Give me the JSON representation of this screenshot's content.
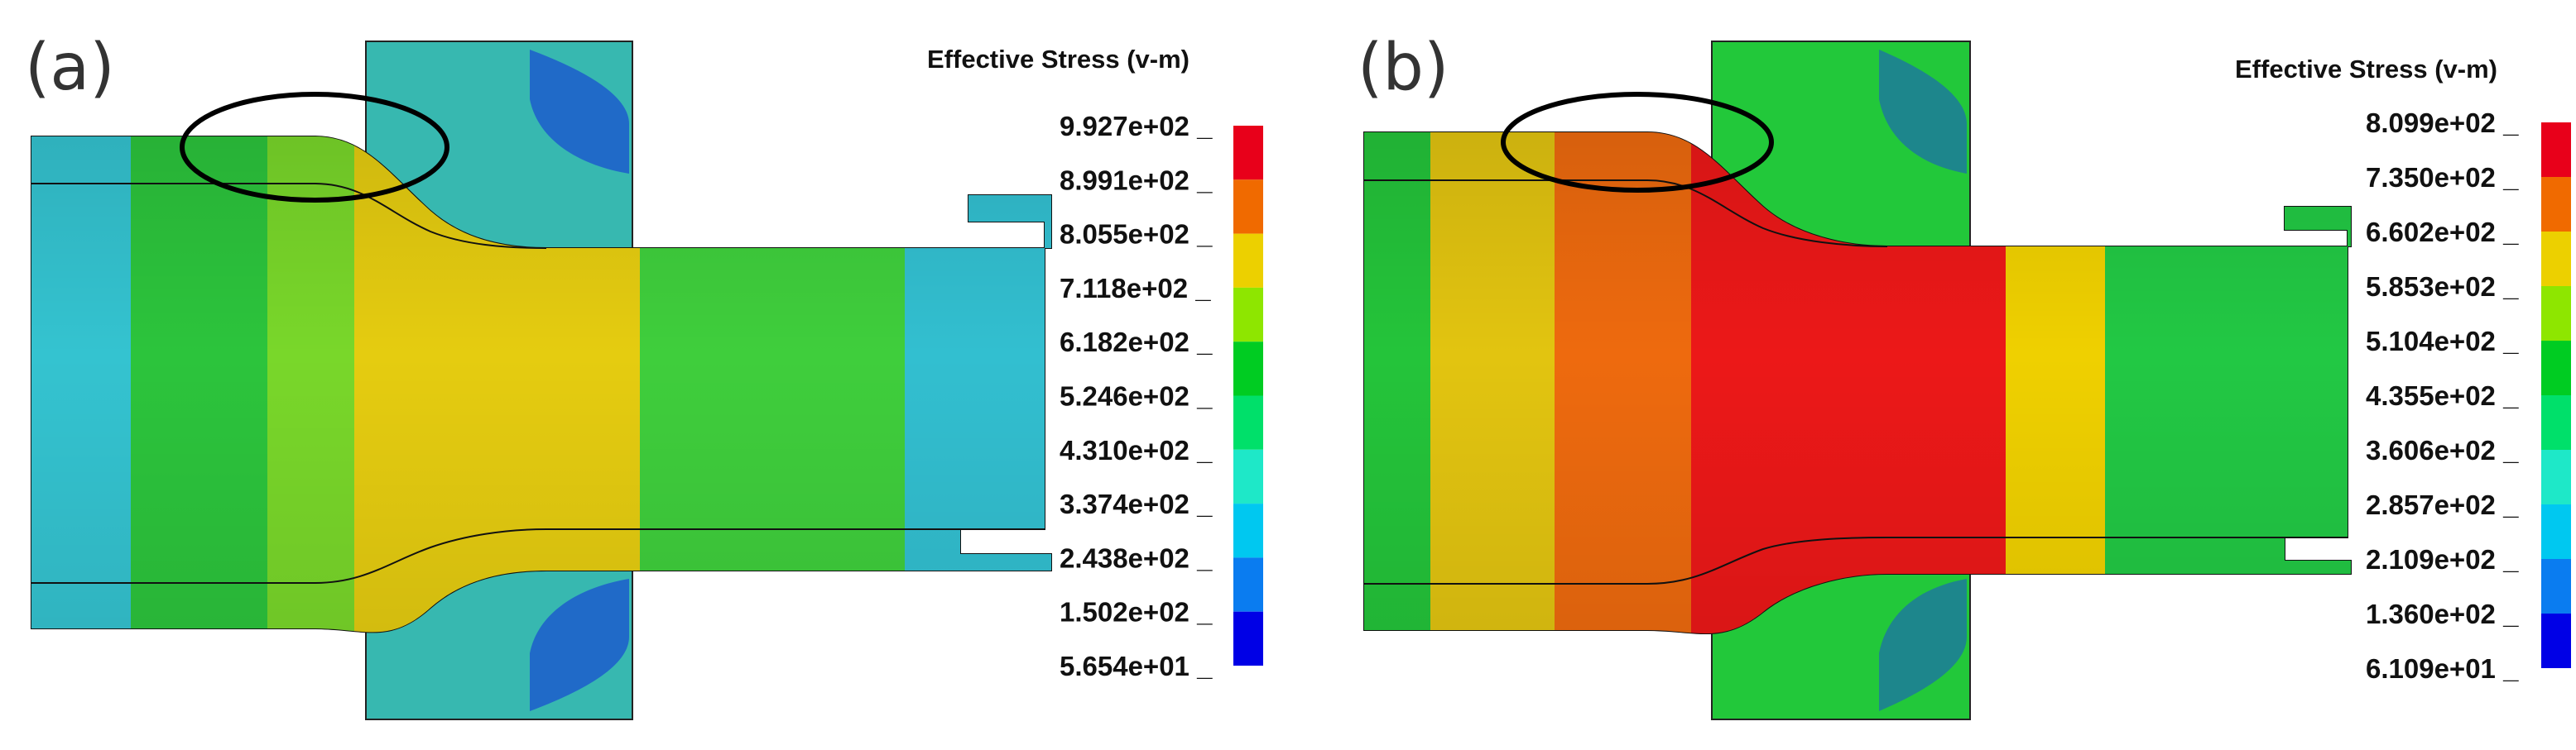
{
  "panels": [
    {
      "label": "(a)",
      "legend_title": "Effective Stress (v-m)",
      "ticks": [
        "9.927e+02",
        "8.991e+02",
        "8.055e+02",
        "7.118e+02",
        "6.182e+02",
        "5.246e+02",
        "4.310e+02",
        "3.374e+02",
        "2.438e+02",
        "1.502e+02",
        "5.654e+01"
      ]
    },
    {
      "label": "(b)",
      "legend_title": "Effective Stress (v-m)",
      "ticks": [
        "8.099e+02",
        "7.350e+02",
        "6.602e+02",
        "5.853e+02",
        "5.104e+02",
        "4.355e+02",
        "3.606e+02",
        "2.857e+02",
        "2.109e+02",
        "1.360e+02",
        "6.109e+01"
      ]
    }
  ],
  "colormap": [
    "#e8001a",
    "#f06a00",
    "#ecd000",
    "#8ee600",
    "#00cc22",
    "#00e06a",
    "#1ee8c8",
    "#00c8f0",
    "#0a7cf0",
    "#0000e6"
  ],
  "fills_a": {
    "die": "#37b8b0",
    "left_end": "#34c3d0",
    "band1": "#2cc43c",
    "band2": "#79d72a",
    "neck": "#e5cc10",
    "mid": "#3fce3c",
    "right": "#32bfd0",
    "top_rim": "#2fc0c8"
  },
  "fills_b": {
    "die": "#22c83a",
    "left_end": "#24c43a",
    "band1": "#e2c410",
    "band2": "#ee6a0e",
    "neck": "#ec1818",
    "mid": "#efd000",
    "right": "#22c844",
    "top_rim": "#2fc0c8"
  }
}
